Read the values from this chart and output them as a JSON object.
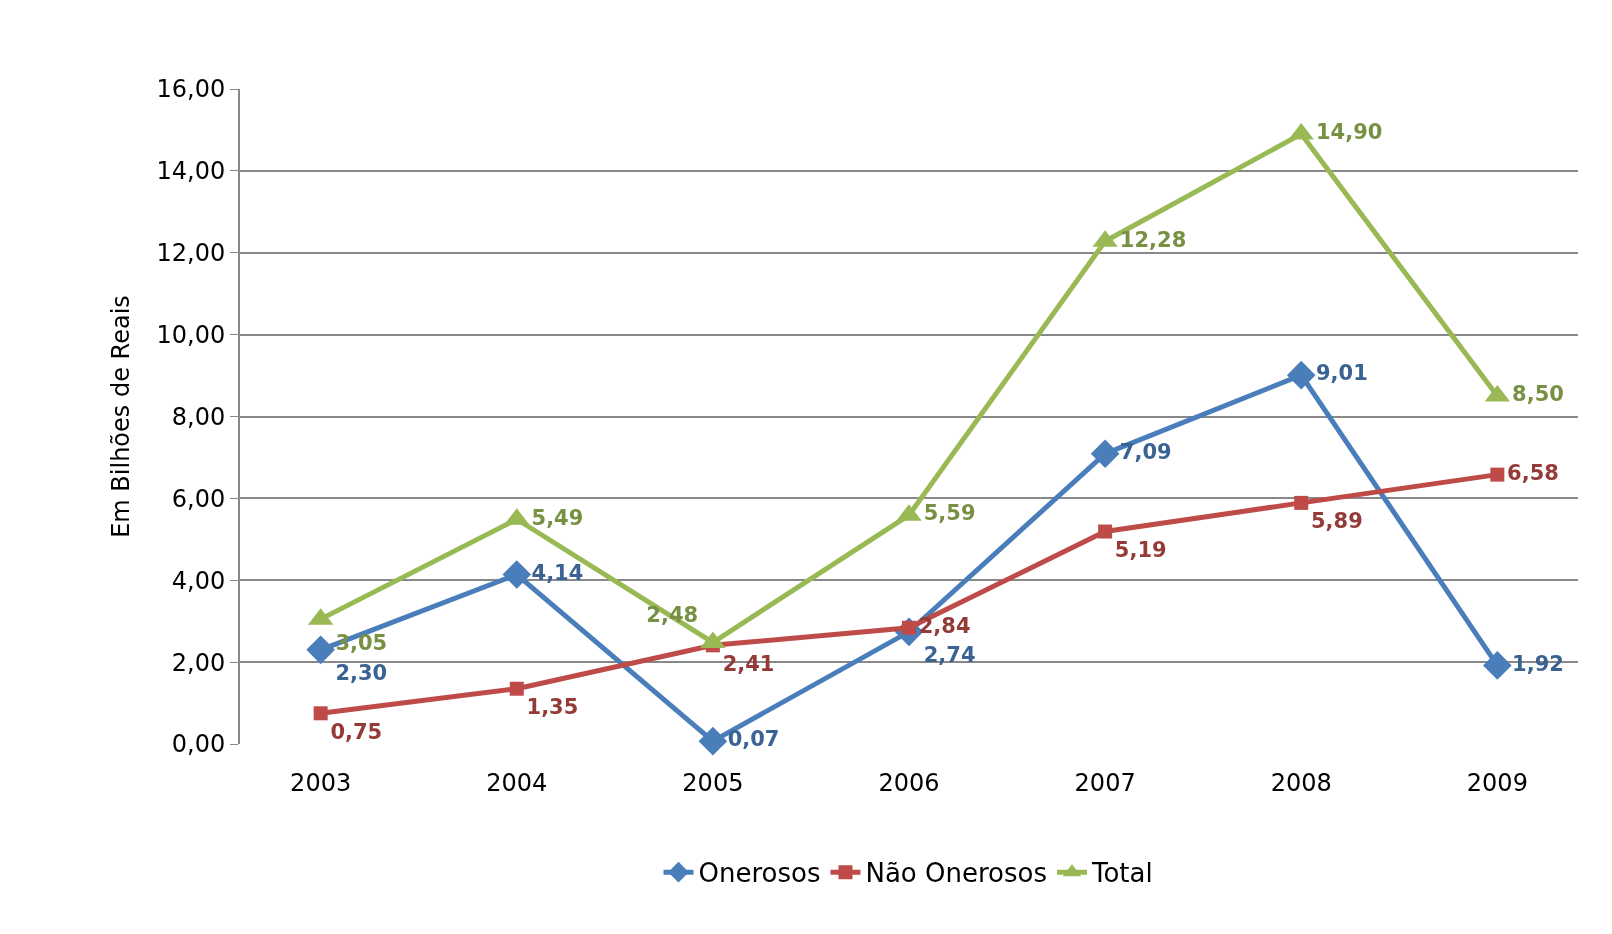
{
  "chart_data": {
    "type": "line",
    "ylabel": "Em Bilhões de Reais",
    "categories": [
      "2003",
      "2004",
      "2005",
      "2006",
      "2007",
      "2008",
      "2009"
    ],
    "series": [
      {
        "name": "Onerosos",
        "color": "#4a7ebb",
        "marker": "diamond",
        "values": [
          2.3,
          4.14,
          0.07,
          2.74,
          7.09,
          9.01,
          1.92
        ],
        "value_labels": [
          "2,30",
          "4,14",
          "0,07",
          "2,74",
          "7,09",
          "9,01",
          "1,92"
        ]
      },
      {
        "name": "Não Onerosos",
        "color": "#be4b48",
        "marker": "square",
        "values": [
          0.75,
          1.35,
          2.41,
          2.84,
          5.19,
          5.89,
          6.58
        ],
        "value_labels": [
          "0,75",
          "1,35",
          "2,41",
          "2,84",
          "5,19",
          "5,89",
          "6,58"
        ]
      },
      {
        "name": "Total",
        "color": "#98b954",
        "marker": "triangle",
        "values": [
          3.05,
          5.49,
          2.48,
          5.59,
          12.28,
          14.9,
          8.5
        ],
        "value_labels": [
          "3,05",
          "5,49",
          "2,48",
          "5,59",
          "12,28",
          "14,90",
          "8,50"
        ]
      }
    ],
    "ylim": [
      0,
      16
    ],
    "yticks": [
      {
        "value": 0,
        "label": "0,00"
      },
      {
        "value": 2,
        "label": "2,00"
      },
      {
        "value": 4,
        "label": "4,00"
      },
      {
        "value": 6,
        "label": "6,00"
      },
      {
        "value": 8,
        "label": "8,00"
      },
      {
        "value": 10,
        "label": "10,00"
      },
      {
        "value": 12,
        "label": "12,00"
      },
      {
        "value": 14,
        "label": "14,00"
      },
      {
        "value": 16,
        "label": "16,00"
      }
    ],
    "grid": "y",
    "legend": "bottom",
    "line_style": "solid"
  }
}
